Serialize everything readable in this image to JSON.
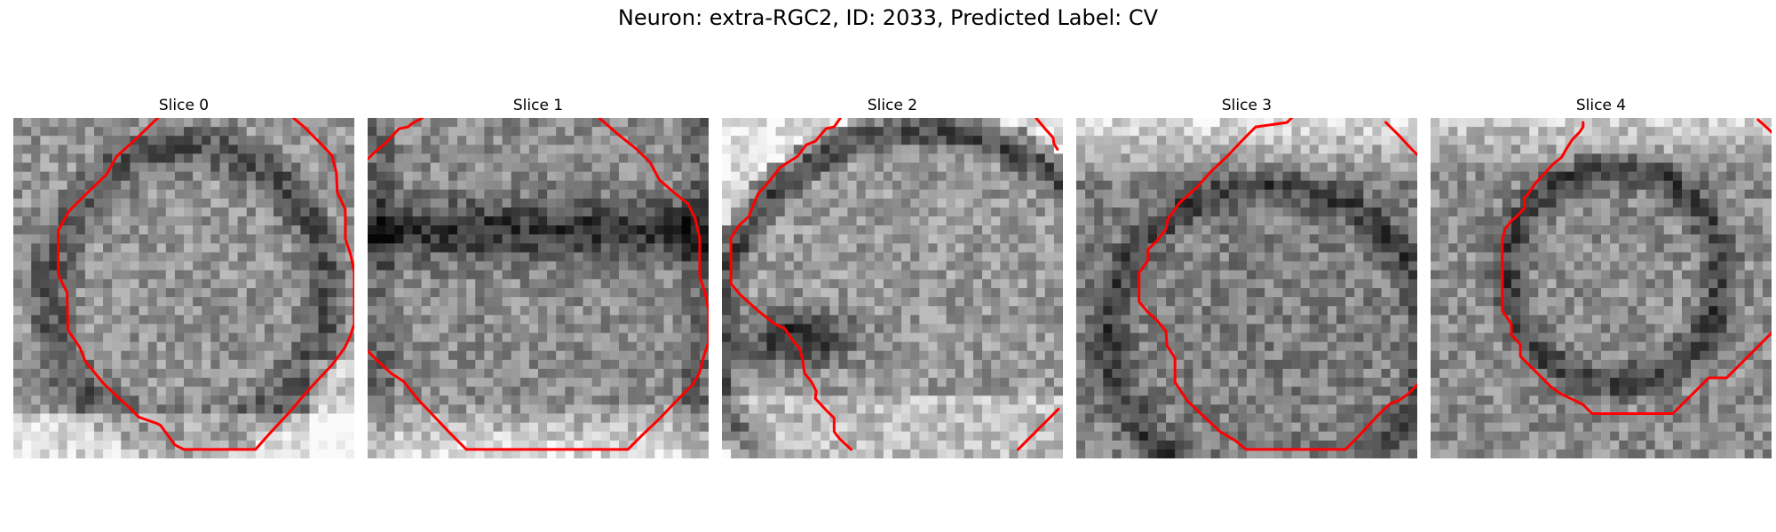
{
  "title": "Neuron: extra-RGC2, ID: 2033, Predicted Label: CV",
  "panels": [
    {
      "label": "Slice 0",
      "contours": [
        [
          [
            16.1,
            0
          ],
          [
            13.4,
            2.6
          ],
          [
            11.5,
            4.3
          ],
          [
            10.4,
            6.3
          ],
          [
            8.2,
            8.4
          ],
          [
            6.2,
            10.4
          ],
          [
            5.0,
            12.6
          ],
          [
            5.0,
            17.5
          ],
          [
            6.0,
            19.5
          ],
          [
            6.1,
            23.7
          ],
          [
            7.4,
            25.6
          ],
          [
            8.0,
            27.1
          ],
          [
            8.7,
            28.0
          ],
          [
            10.0,
            29.6
          ],
          [
            12.0,
            31.5
          ],
          [
            12.8,
            32.2
          ],
          [
            14.0,
            33.4
          ],
          [
            16.0,
            34.1
          ],
          [
            16.4,
            34.3
          ],
          [
            17.2,
            35.4
          ],
          [
            18.0,
            36.5
          ],
          [
            19.0,
            37.0
          ],
          [
            27.0,
            37.0
          ],
          [
            28.4,
            35.4
          ],
          [
            29.7,
            34.0
          ],
          [
            30.9,
            32.7
          ],
          [
            32.0,
            31.4
          ],
          [
            33.6,
            29.6
          ],
          [
            35.5,
            27.6
          ],
          [
            36.9,
            25.7
          ],
          [
            37.5,
            24.5
          ],
          [
            38.0,
            23.0
          ],
          [
            38.0,
            17.2
          ],
          [
            37.6,
            15.3
          ],
          [
            37.0,
            13.5
          ],
          [
            37.0,
            10.2
          ],
          [
            36.1,
            8.3
          ],
          [
            36.0,
            6.1
          ],
          [
            35.5,
            4.2
          ],
          [
            34.2,
            2.8
          ],
          [
            32.4,
            1.0
          ],
          [
            31.2,
            0
          ]
        ]
      ]
    },
    {
      "label": "Slice 1",
      "contours": [
        [
          [
            6.1,
            0
          ],
          [
            5.0,
            0.6
          ],
          [
            4.5,
            1.0
          ],
          [
            3.5,
            1.2
          ],
          [
            2.0,
            2.8
          ],
          [
            0.6,
            4.0
          ],
          [
            0,
            4.6
          ]
        ],
        [
          [
            25.8,
            0
          ],
          [
            28.1,
            2.0
          ],
          [
            30.0,
            3.5
          ],
          [
            31.5,
            5.0
          ],
          [
            32.5,
            6.9
          ],
          [
            34.0,
            8.2
          ],
          [
            35.7,
            9.6
          ],
          [
            36.5,
            11.2
          ],
          [
            37.0,
            13.4
          ],
          [
            37.0,
            17.7
          ],
          [
            37.6,
            19.5
          ],
          [
            38.0,
            21.5
          ],
          [
            38.0,
            25.0
          ],
          [
            37.5,
            26.5
          ],
          [
            37.0,
            28.4
          ],
          [
            36.2,
            29.8
          ],
          [
            34.4,
            31.6
          ],
          [
            32.5,
            33.6
          ],
          [
            30.6,
            35.4
          ],
          [
            29.0,
            37.0
          ],
          [
            11.0,
            37.0
          ],
          [
            9.2,
            35.2
          ],
          [
            7.4,
            33.3
          ],
          [
            5.6,
            31.4
          ],
          [
            4.0,
            29.4
          ],
          [
            2.6,
            28.5
          ],
          [
            1.0,
            27.0
          ],
          [
            0,
            26.0
          ]
        ]
      ]
    },
    {
      "label": "Slice 2",
      "contours": [
        [
          [
            13.2,
            0
          ],
          [
            12.5,
            1.0
          ],
          [
            11.6,
            1.2
          ],
          [
            10.4,
            2.6
          ],
          [
            9.4,
            3.0
          ],
          [
            8.4,
            4.3
          ],
          [
            7.3,
            5.0
          ],
          [
            6.5,
            5.5
          ],
          [
            5.8,
            6.4
          ],
          [
            5.0,
            7.4
          ],
          [
            4.0,
            8.5
          ],
          [
            3.5,
            9.7
          ],
          [
            3.0,
            11.0
          ],
          [
            1.9,
            12.0
          ],
          [
            1.0,
            13.4
          ],
          [
            1.0,
            18.5
          ],
          [
            2.0,
            19.7
          ],
          [
            4.0,
            21.5
          ],
          [
            5.9,
            23.0
          ],
          [
            7.0,
            23.5
          ],
          [
            8.0,
            25.0
          ],
          [
            8.6,
            25.6
          ],
          [
            9.0,
            27.0
          ],
          [
            9.2,
            28.5
          ],
          [
            10.0,
            29.5
          ],
          [
            10.5,
            30.5
          ],
          [
            10.4,
            31.3
          ],
          [
            11.5,
            32.5
          ],
          [
            12.5,
            33.5
          ],
          [
            12.5,
            35.0
          ],
          [
            13.1,
            35.8
          ],
          [
            14.4,
            37.0
          ]
        ],
        [
          [
            35.0,
            0
          ],
          [
            36.0,
            1.2
          ],
          [
            36.9,
            2.2
          ],
          [
            37.0,
            2.9
          ],
          [
            37.4,
            3.5
          ]
        ],
        [
          [
            33.0,
            37.0
          ],
          [
            34.5,
            35.5
          ],
          [
            36.0,
            34.0
          ],
          [
            37.5,
            32.5
          ]
        ]
      ]
    },
    {
      "label": "Slice 3",
      "contours": [
        [
          [
            24.0,
            0
          ],
          [
            23.5,
            0.5
          ],
          [
            20.0,
            1.0
          ],
          [
            18.5,
            2.5
          ],
          [
            16.8,
            4.3
          ],
          [
            15.0,
            6.0
          ],
          [
            13.4,
            7.8
          ],
          [
            11.5,
            9.5
          ],
          [
            10.2,
            11.3
          ],
          [
            10.0,
            12.4
          ],
          [
            9.0,
            13.7
          ],
          [
            8.0,
            14.7
          ],
          [
            8.0,
            15.9
          ],
          [
            7.0,
            17.3
          ],
          [
            7.0,
            20.5
          ],
          [
            8.0,
            21.7
          ],
          [
            9.0,
            22.6
          ],
          [
            10.0,
            23.8
          ],
          [
            10.1,
            25.4
          ],
          [
            11.0,
            26.8
          ],
          [
            11.0,
            29.5
          ],
          [
            12.4,
            31.6
          ],
          [
            14.3,
            33.4
          ],
          [
            16.0,
            35.0
          ],
          [
            17.7,
            36.0
          ],
          [
            18.9,
            37.0
          ],
          [
            30.0,
            37.0
          ],
          [
            31.4,
            35.6
          ],
          [
            32.6,
            34.3
          ],
          [
            33.9,
            32.9
          ],
          [
            35.0,
            31.9
          ],
          [
            36.0,
            31.5
          ],
          [
            37.0,
            30.8
          ],
          [
            38.0,
            29.8
          ],
          [
            39.0,
            28.8
          ]
        ],
        [
          [
            34.5,
            0.5
          ],
          [
            36.0,
            2.0
          ],
          [
            37.3,
            3.4
          ],
          [
            38.5,
            4.6
          ]
        ]
      ]
    },
    {
      "label": "Slice 4",
      "contours": [
        [
          [
            17.0,
            0.5
          ],
          [
            17.0,
            1.0
          ],
          [
            16.6,
            1.6
          ],
          [
            15.8,
            2.4
          ],
          [
            15.1,
            3.5
          ],
          [
            14.6,
            4.4
          ],
          [
            13.6,
            5.2
          ],
          [
            12.5,
            6.4
          ],
          [
            11.6,
            7.4
          ],
          [
            11.0,
            8.3
          ],
          [
            10.4,
            9.0
          ],
          [
            10.5,
            10.0
          ],
          [
            9.6,
            11.0
          ],
          [
            9.0,
            11.5
          ],
          [
            8.3,
            12.4
          ],
          [
            8.0,
            13.6
          ],
          [
            8.0,
            21.5
          ],
          [
            9.0,
            23.0
          ],
          [
            9.0,
            24.2
          ],
          [
            10.0,
            25.3
          ],
          [
            10.0,
            26.6
          ],
          [
            11.0,
            27.6
          ],
          [
            12.2,
            28.8
          ],
          [
            13.4,
            30.0
          ],
          [
            14.5,
            30.8
          ],
          [
            16.0,
            31.5
          ],
          [
            17.0,
            32.0
          ],
          [
            18.0,
            33.0
          ],
          [
            27.0,
            33.0
          ],
          [
            28.5,
            31.5
          ],
          [
            30.0,
            30.0
          ],
          [
            31.0,
            29.0
          ],
          [
            33.0,
            29.0
          ],
          [
            35.0,
            27.0
          ],
          [
            37.0,
            25.0
          ],
          [
            38.0,
            24.0
          ],
          [
            39.0,
            23.0
          ]
        ],
        [
          [
            36.5,
            0.2
          ],
          [
            37.6,
            1.2
          ],
          [
            38.6,
            2.2
          ]
        ]
      ]
    }
  ],
  "colors": {
    "contour": "#ff0000"
  }
}
